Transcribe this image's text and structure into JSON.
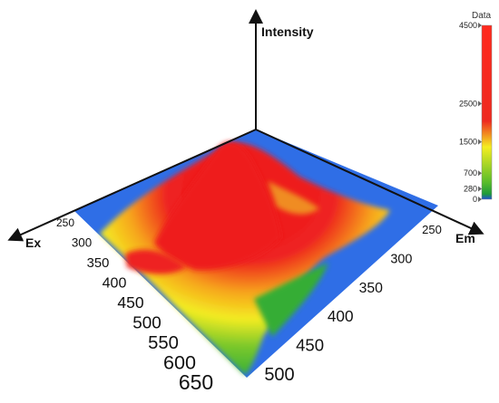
{
  "chart_data": {
    "type": "surface",
    "x_axis": {
      "label": "Ex",
      "ticks": [
        "250",
        "300",
        "350",
        "400",
        "450",
        "500",
        "550",
        "600",
        "650"
      ]
    },
    "y_axis": {
      "label": "Em",
      "ticks": [
        "250",
        "300",
        "350",
        "400",
        "450",
        "500"
      ]
    },
    "z_axis": {
      "label": "Intensity",
      "range": [
        0,
        4500
      ]
    },
    "colorbar": {
      "title": "Data",
      "ticks": [
        "0",
        "280",
        "700",
        "1500",
        "2500",
        "4500"
      ],
      "tick_values": [
        0,
        280,
        700,
        1500,
        2500,
        4500
      ],
      "stops": [
        {
          "value": 0,
          "color": "#1f4fd6"
        },
        {
          "value": 280,
          "color": "#1f9a3a"
        },
        {
          "value": 700,
          "color": "#5bbd2a"
        },
        {
          "value": 1500,
          "color": "#f5ee20"
        },
        {
          "value": 2500,
          "color": "#ee2a20"
        },
        {
          "value": 4500,
          "color": "#ff2a1e"
        }
      ]
    },
    "peaks": [
      {
        "ex": 320,
        "em": 255,
        "intensity": 4300
      },
      {
        "ex": 300,
        "em": 330,
        "intensity": 2200
      }
    ]
  }
}
